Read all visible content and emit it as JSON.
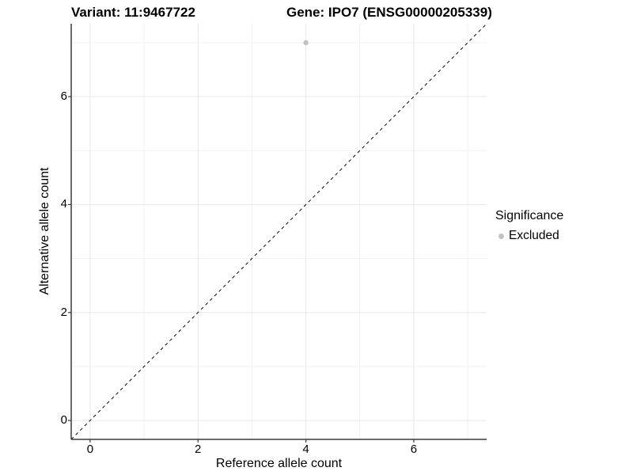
{
  "chart_data": {
    "type": "scatter",
    "title_left": "Variant: 11:9467722",
    "title_right": "Gene: IPO7 (ENSG00000205339)",
    "xlabel": "Reference allele count",
    "ylabel": "Alternative allele count",
    "xlim": [
      -0.35,
      7.35
    ],
    "ylim": [
      -0.35,
      7.35
    ],
    "x_major_ticks": [
      0,
      2,
      4,
      6
    ],
    "y_major_ticks": [
      0,
      2,
      4,
      6
    ],
    "x_minor_ticks": [
      1,
      3,
      5,
      7
    ],
    "y_minor_ticks": [
      1,
      3,
      5,
      7
    ],
    "grid": true,
    "series": [
      {
        "name": "Excluded",
        "color": "#c2c2c2",
        "points": [
          {
            "x": 4,
            "y": 7
          }
        ]
      }
    ],
    "reference_line": {
      "slope": 1,
      "intercept": 0,
      "style": "dashed",
      "color": "#000000",
      "meaning": "identity line y = x"
    },
    "legend": {
      "title": "Significance",
      "position": "right",
      "items": [
        {
          "label": "Excluded",
          "color": "#c2c2c2",
          "marker": "circle"
        }
      ]
    }
  },
  "colors": {
    "background": "#ffffff",
    "grid_major": "#e8e8e8",
    "grid_minor": "#f1f1f1",
    "axis_line": "#3a3a3a",
    "text": "#000000"
  }
}
